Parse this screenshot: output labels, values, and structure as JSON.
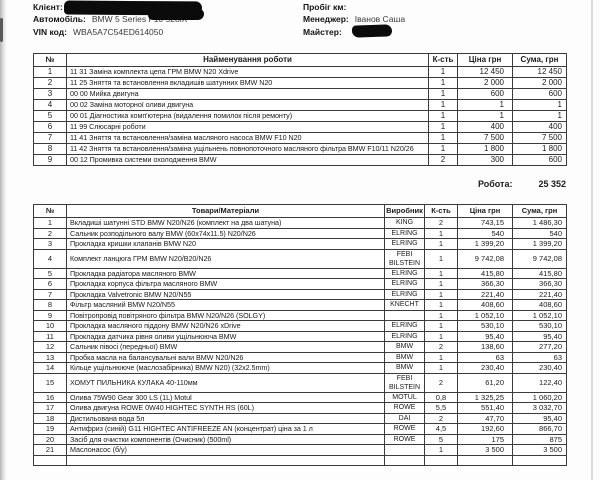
{
  "header": {
    "client_label": "Клієнт:",
    "client_value": "",
    "car_label": "Автомобіль:",
    "car_value": "BMW 5 Series F10 528iX",
    "vin_label": "VIN код:",
    "vin_value": "WBA5A7C54ED614050",
    "mileage_label": "Пробіг км:",
    "mileage_value": "",
    "manager_label": "Менеджер:",
    "manager_value": "Іванов Саша",
    "master_label": "Майстер:",
    "master_value": ""
  },
  "works_table": {
    "columns": [
      "№",
      "Найменування роботи",
      "К-сть",
      "Ціна грн",
      "Сума, грн"
    ],
    "rows": [
      [
        "1",
        "11 31 Заміна комплекта цепа ГРМ BMW N20 Xdrive",
        "1",
        "12 450",
        "12 450"
      ],
      [
        "2",
        "11 25 Зняття та встановлення вкладишів шатунних BMW N20",
        "1",
        "2 000",
        "2 000"
      ],
      [
        "3",
        "00 00 Мийка двигуна",
        "1",
        "600",
        "600"
      ],
      [
        "4",
        "00 02 Заміна моторної оливи двигуна",
        "1",
        "1",
        "1"
      ],
      [
        "5",
        "00 01 Діагностика комп'ютерна (видалення помилок після ремонту)",
        "1",
        "1",
        "1"
      ],
      [
        "6",
        "11 99 Слюсарні роботи",
        "1",
        "400",
        "400"
      ],
      [
        "7",
        "11 41 Зняття та встановлення/заміна масляного насоса BMW F10 N20",
        "1",
        "7 500",
        "7 500"
      ],
      [
        "8",
        "11 42 Зняття та встановлення/заміна ущільнень повнопоточного масляного фільтра BMW F10/11 N20/26",
        "1",
        "1 800",
        "1 800"
      ],
      [
        "9",
        "00 12 Промивка системи охолодження BMW",
        "2",
        "300",
        "600"
      ]
    ]
  },
  "works_total": {
    "label": "Робота:",
    "value": "25 352"
  },
  "materials_table": {
    "columns": [
      "№",
      "Товари/Матеріали",
      "Виробник",
      "К-сть",
      "Ціна грн",
      "Сума, грн"
    ],
    "rows": [
      [
        "1",
        "Вкладиші шатунні STD BMW N20/N26 (комплект на два шатуна)",
        "KING",
        "2",
        "743,15",
        "1 486,30"
      ],
      [
        "2",
        "Сальник розподільного валу BMW (60x74x11.5) N20/N26",
        "ELRING",
        "1",
        "540",
        "540"
      ],
      [
        "3",
        "Прокладка кришки клапанів BMW N20",
        "ELRING",
        "1",
        "1 399,20",
        "1 399,20"
      ],
      [
        "4",
        "Комплект ланцюга ГРМ BMW N20/B20/N26",
        "FEBI BILSTEIN",
        "1",
        "9 742,08",
        "9 742,08"
      ],
      [
        "5",
        "Прокладка радіатора масляного BMW",
        "ELRING",
        "1",
        "415,80",
        "415,80"
      ],
      [
        "6",
        "Прокладка корпуса фільтра масляного BMW",
        "ELRING",
        "1",
        "366,30",
        "366,30"
      ],
      [
        "7",
        "Прокладка Valvetronic BMW N20/N55",
        "ELRING",
        "1",
        "221,40",
        "221,40"
      ],
      [
        "8",
        "Фільтр масляний BMW N20/N55",
        "KNECHT",
        "1",
        "408,60",
        "408,60"
      ],
      [
        "9",
        "Повітропровід повітряного фільтра BMW N20/N26 (SOLGY)",
        "",
        "1",
        "1 052,10",
        "1 052,10"
      ],
      [
        "10",
        "Прокладка масляного піддону BMW N20/N26 xDrive",
        "ELRING",
        "1",
        "530,10",
        "530,10"
      ],
      [
        "11",
        "Прокладка датчика рівня оливи ущільнююча BMW",
        "ELRING",
        "1",
        "95,40",
        "95,40"
      ],
      [
        "12",
        "Сальник півосі (передньої) BMW",
        "BMW",
        "2",
        "138,60",
        "277,20"
      ],
      [
        "13",
        "Пробка масла на балансувальні вали BMW N20/N26",
        "BMW",
        "1",
        "63",
        "63"
      ],
      [
        "14",
        "Кільце ущільнююче (маслозабірника) BMW N20) (32x2.5mm)",
        "BMW",
        "1",
        "230,40",
        "230,40"
      ],
      [
        "15",
        "ХОМУТ ПИЛЬНИКА КУЛАКА 40-110мм",
        "FEBI BILSTEIN",
        "2",
        "61,20",
        "122,40"
      ],
      [
        "16",
        "Олива 75W90 Gear 300 LS (1L) Motul",
        "MOTUL",
        "0,8",
        "1 325,25",
        "1 060,20"
      ],
      [
        "17",
        "Олива двигуна ROWE 0W40 HIGHTEC SYNTH RS (60L)",
        "ROWE",
        "5,5",
        "551,40",
        "3 032,70"
      ],
      [
        "18",
        "Дистильована вода 5л",
        "DAI",
        "2",
        "47,70",
        "95,40"
      ],
      [
        "19",
        "Антифриз (синій) G11 HIGHTEC ANTIFREEZE AN (концентрат) ціна за 1 л",
        "ROWE",
        "4,5",
        "192,60",
        "866,70"
      ],
      [
        "20",
        "Засіб для очистки компонентів (Очисник) (500ml)",
        "ROWE",
        "5",
        "175",
        "875"
      ],
      [
        "21",
        "Маслонасос (б/у)",
        "",
        "1",
        "3 500",
        "3 500"
      ]
    ]
  }
}
